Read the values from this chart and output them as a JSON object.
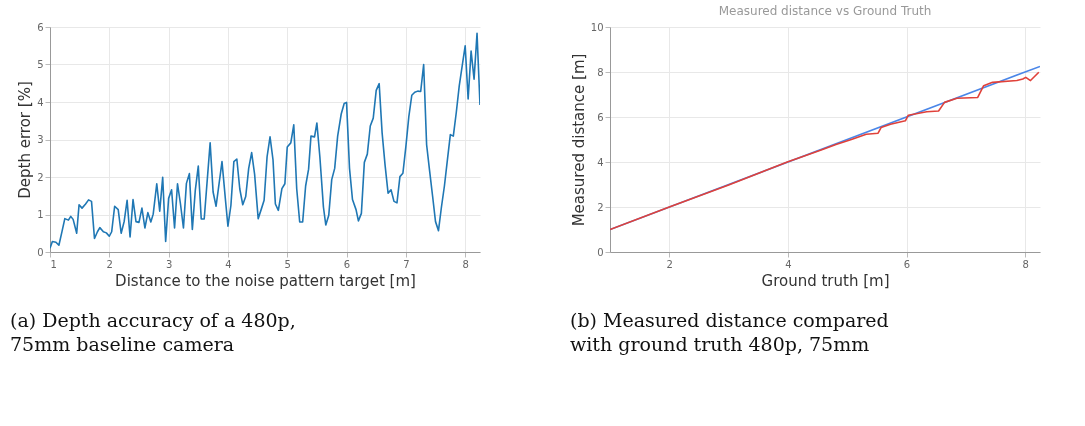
{
  "chart_data": [
    {
      "type": "line",
      "xlabel": "Distance to the noise pattern target [m]",
      "ylabel": "Depth error [%]",
      "xlim": [
        1,
        8.25
      ],
      "ylim": [
        0,
        6
      ],
      "xticks": [
        1,
        2,
        3,
        4,
        5,
        6,
        7,
        8
      ],
      "yticks": [
        0,
        1,
        2,
        3,
        4,
        5,
        6
      ],
      "grid": true,
      "annotations": [
        "(a) Depth accuracy of a 480p, 75mm baseline camera"
      ],
      "series": [
        {
          "color": "#1f77b4",
          "x": [
            1.0,
            1.04,
            1.1,
            1.15,
            1.2,
            1.25,
            1.31,
            1.35,
            1.39,
            1.45,
            1.49,
            1.54,
            1.6,
            1.65,
            1.7,
            1.75,
            1.8,
            1.84,
            1.9,
            1.95,
            2.0,
            2.04,
            2.09,
            2.15,
            2.2,
            2.25,
            2.3,
            2.35,
            2.4,
            2.45,
            2.5,
            2.55,
            2.6,
            2.65,
            2.7,
            2.74,
            2.8,
            2.85,
            2.9,
            2.95,
            3.0,
            3.05,
            3.1,
            3.15,
            3.2,
            3.25,
            3.3,
            3.35,
            3.4,
            3.45,
            3.5,
            3.55,
            3.6,
            3.7,
            3.75,
            3.8,
            3.9,
            3.96,
            4.0,
            4.05,
            4.1,
            4.15,
            4.2,
            4.25,
            4.3,
            4.35,
            4.4,
            4.45,
            4.51,
            4.56,
            4.61,
            4.66,
            4.71,
            4.76,
            4.8,
            4.85,
            4.91,
            4.96,
            5.0,
            5.06,
            5.11,
            5.16,
            5.21,
            5.26,
            5.31,
            5.36,
            5.4,
            5.46,
            5.5,
            5.55,
            5.61,
            5.65,
            5.7,
            5.75,
            5.8,
            5.85,
            5.91,
            5.96,
            6.0,
            6.05,
            6.1,
            6.16,
            6.2,
            6.25,
            6.3,
            6.35,
            6.4,
            6.45,
            6.5,
            6.55,
            6.6,
            6.65,
            6.7,
            6.75,
            6.8,
            6.85,
            6.9,
            6.95,
            7.0,
            7.05,
            7.1,
            7.15,
            7.2,
            7.25,
            7.3,
            7.35,
            7.4,
            7.45,
            7.5,
            7.55,
            7.6,
            7.65,
            7.7,
            7.75,
            7.8,
            7.85,
            7.9,
            8.0,
            8.05,
            8.1,
            8.15,
            8.2,
            8.25
          ],
          "values": [
            0.1,
            0.28,
            0.26,
            0.18,
            0.53,
            0.89,
            0.85,
            0.95,
            0.87,
            0.5,
            1.26,
            1.17,
            1.28,
            1.39,
            1.35,
            0.36,
            0.54,
            0.65,
            0.54,
            0.51,
            0.42,
            0.54,
            1.22,
            1.13,
            0.5,
            0.81,
            1.38,
            0.4,
            1.4,
            0.81,
            0.79,
            1.17,
            0.64,
            1.05,
            0.8,
            1.01,
            1.82,
            1.09,
            1.99,
            0.28,
            1.43,
            1.66,
            0.64,
            1.82,
            1.28,
            0.64,
            1.83,
            2.09,
            0.6,
            1.65,
            2.29,
            0.88,
            0.88,
            2.91,
            1.6,
            1.22,
            2.41,
            1.36,
            0.69,
            1.24,
            2.41,
            2.48,
            1.68,
            1.26,
            1.48,
            2.23,
            2.65,
            2.07,
            0.89,
            1.13,
            1.38,
            2.54,
            3.07,
            2.46,
            1.28,
            1.11,
            1.69,
            1.82,
            2.8,
            2.91,
            3.39,
            1.68,
            0.8,
            0.8,
            1.76,
            2.21,
            3.09,
            3.07,
            3.44,
            2.54,
            1.2,
            0.72,
            0.98,
            1.93,
            2.23,
            3.09,
            3.68,
            3.96,
            3.99,
            2.23,
            1.4,
            1.13,
            0.83,
            1.03,
            2.39,
            2.61,
            3.36,
            3.57,
            4.31,
            4.49,
            3.17,
            2.31,
            1.57,
            1.66,
            1.35,
            1.31,
            2.01,
            2.1,
            2.81,
            3.61,
            4.18,
            4.26,
            4.29,
            4.28,
            5.0,
            2.86,
            2.17,
            1.5,
            0.81,
            0.57,
            1.2,
            1.76,
            2.45,
            3.13,
            3.09,
            3.72,
            4.43,
            5.5,
            4.08,
            5.36,
            4.61,
            5.83,
            3.92
          ]
        }
      ]
    },
    {
      "type": "line",
      "title": "Measured distance vs Ground Truth",
      "xlabel": "Ground truth [m]",
      "ylabel": "Measured distance [m]",
      "xlim": [
        1,
        8.25
      ],
      "ylim": [
        0,
        10
      ],
      "xticks": [
        2,
        4,
        6,
        8
      ],
      "yticks": [
        0,
        2,
        4,
        6,
        8,
        10
      ],
      "grid": true,
      "annotations": [
        "(b) Measured distance compared with ground truth 480p, 75mm"
      ],
      "series": [
        {
          "color": "#4a86e8",
          "x": [
            1,
            8.25
          ],
          "values": [
            1,
            8.25
          ]
        },
        {
          "color": "#e0413a",
          "x": [
            1.0,
            2.0,
            3.0,
            4.0,
            4.3,
            4.56,
            4.81,
            5.07,
            5.32,
            5.52,
            5.57,
            5.73,
            5.98,
            6.03,
            6.34,
            6.54,
            6.64,
            6.85,
            7.2,
            7.3,
            7.45,
            7.86,
            7.96,
            8.01,
            8.09,
            8.23
          ],
          "values": [
            1.0,
            2.0,
            2.98,
            4.01,
            4.29,
            4.53,
            4.78,
            5.0,
            5.23,
            5.28,
            5.53,
            5.68,
            5.83,
            6.08,
            6.23,
            6.27,
            6.65,
            6.83,
            6.87,
            7.39,
            7.54,
            7.62,
            7.69,
            7.76,
            7.62,
            7.99
          ]
        }
      ]
    }
  ]
}
